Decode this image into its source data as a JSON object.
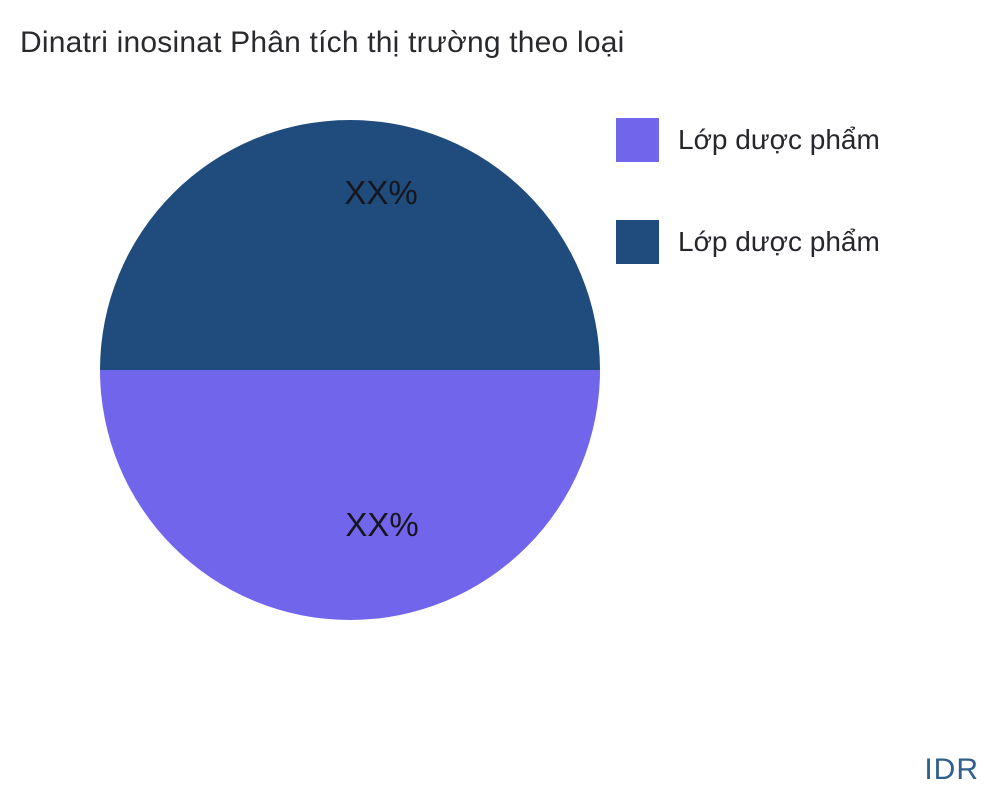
{
  "title": "Dinatri inosinat Phân tích thị trường theo loại",
  "chart_data": {
    "type": "pie",
    "title": "Dinatri inosinat Phân tích thị trường theo loại",
    "slices": [
      {
        "label": "Lớp dược phẩm",
        "value_label": "XX%",
        "value_pct": 50,
        "color": "#7165ec",
        "position": "bottom-half"
      },
      {
        "label": "Lớp dược phẩm",
        "value_label": "XX%",
        "value_pct": 50,
        "color": "#1f4b7d",
        "position": "top-half"
      }
    ],
    "legend": {
      "position": "right",
      "items": [
        {
          "label": "Lớp dược phẩm",
          "color": "#7165ec"
        },
        {
          "label": "Lớp dược phẩm",
          "color": "#1f4b7d"
        }
      ]
    },
    "annotations": [
      "XX%",
      "XX%"
    ],
    "watermark": "IDR"
  },
  "colors": {
    "background": "#ffffff",
    "title_text": "#2a2a2e",
    "slice_label_text": "#16161d",
    "legend_text": "#26262c",
    "watermark_text": "#2f5f8c"
  }
}
